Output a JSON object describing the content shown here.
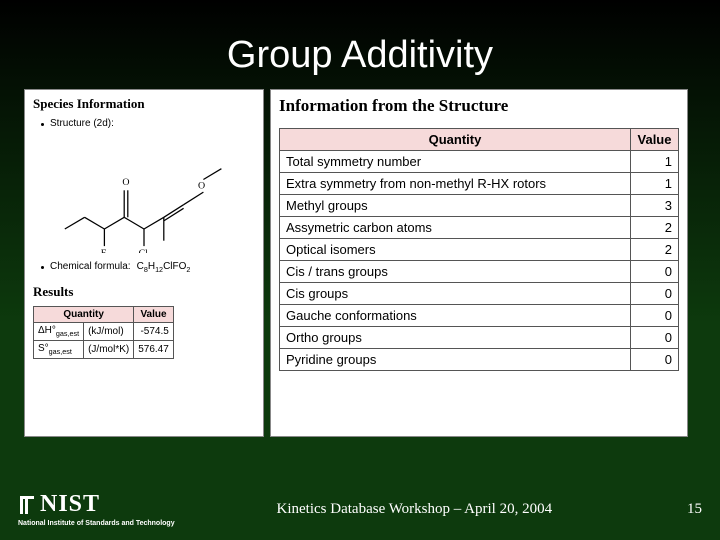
{
  "title": "Group Additivity",
  "left": {
    "heading": "Species Information",
    "bullet_structure_label": "Structure (2d):",
    "bullet_formula_label": "Chemical formula:",
    "formula_html": "C<span class='sub'>8</span>H<span class='sub'>12</span>ClFO<span class='sub'>2</span>",
    "atoms": {
      "F": "F",
      "Cl": "Cl",
      "O": "O"
    },
    "results_heading": "Results",
    "results_table": {
      "head_quantity": "Quantity",
      "head_value": "Value",
      "rows": [
        {
          "sym": "ΔH°<span class='sub'>gas,est</span>",
          "unit": "(kJ/mol)",
          "value": "-574.5"
        },
        {
          "sym": "S°<span class='sub'>gas,est</span>",
          "unit": "(J/mol*K)",
          "value": "576.47"
        }
      ]
    }
  },
  "right": {
    "heading": "Information from the Structure",
    "table": {
      "head_quantity": "Quantity",
      "head_value": "Value",
      "rows": [
        {
          "q": "Total symmetry number",
          "v": "1"
        },
        {
          "q": "Extra symmetry from non-methyl R-HX rotors",
          "v": "1"
        },
        {
          "q": "Methyl groups",
          "v": "3"
        },
        {
          "q": "Assymetric carbon atoms",
          "v": "2"
        },
        {
          "q": "Optical isomers",
          "v": "2"
        },
        {
          "q": "Cis / trans groups",
          "v": "0"
        },
        {
          "q": "Cis groups",
          "v": "0"
        },
        {
          "q": "Gauche conformations",
          "v": "0"
        },
        {
          "q": "Ortho groups",
          "v": "0"
        },
        {
          "q": "Pyridine groups",
          "v": "0"
        }
      ]
    }
  },
  "footer": {
    "nist_word": "NIST",
    "nist_sub": "National Institute of Standards and Technology",
    "mid": "Kinetics Database Workshop – April 20, 2004",
    "page": "15"
  },
  "colors": {
    "table_head_bg": "#f6dada",
    "panel_bg": "#ffffff"
  }
}
